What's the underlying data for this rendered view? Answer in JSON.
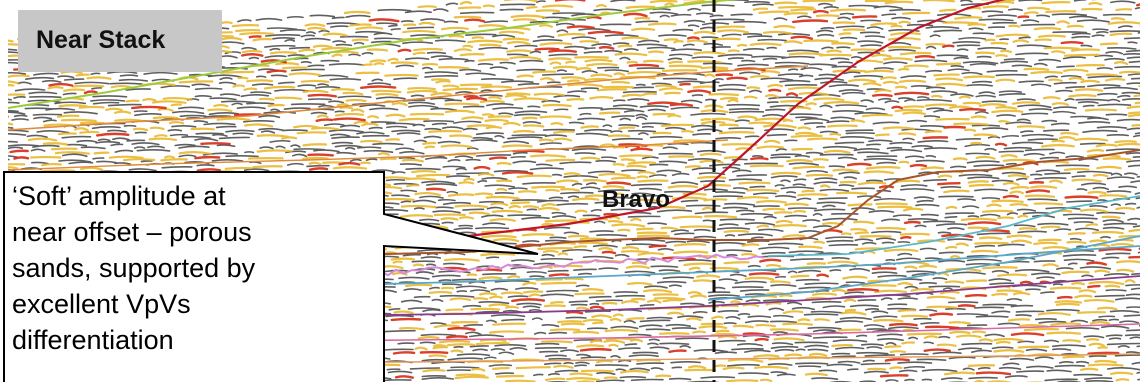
{
  "panel": {
    "title": "Near Stack",
    "well_label": "Bravo"
  },
  "callout": {
    "lines": [
      "‘Soft’ amplitude at",
      "near offset – porous",
      "sands, supported by",
      "excellent VpVs",
      "differentiation"
    ]
  },
  "colors": {
    "title_box": "#c7c7c7",
    "wavelet_dark": "#2a2a2a",
    "wavelet_gold": "#e8b422",
    "wavelet_red": "#d62a14",
    "horizon_red": "#c0142a",
    "horizon_brown": "#a8542a",
    "horizon_green": "#9ccc3c",
    "horizon_blue": "#5aa7c8",
    "horizon_purple": "#8a3a8c",
    "horizon_pink": "#d88ad8",
    "well_marker": "#111111"
  }
}
